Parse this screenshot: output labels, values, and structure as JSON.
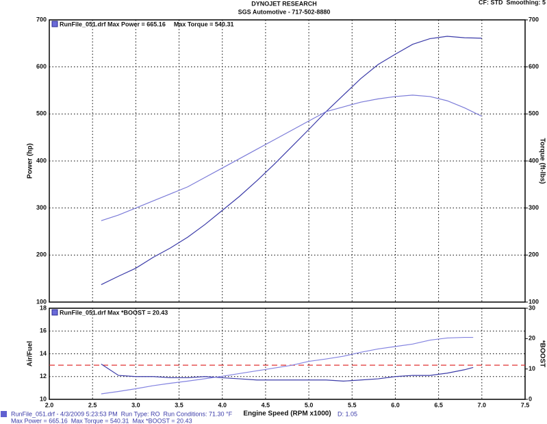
{
  "header": {
    "title": "DYNOJET RESEARCH",
    "subtitle": "SGS Automotive - 717-502-8880",
    "settings": "CF: STD  Smoothing: 5"
  },
  "footer": {
    "line1": "RunFile_051.drf - 4/3/2009 5:23:53 PM  Run Type: RO  Run Conditions: 71.30 °F",
    "line1_end": "D: 1.05",
    "line2": "Max Power = 665.16  Max Torque = 540.31  Max *BOOST = 20.43"
  },
  "chart_data": [
    {
      "type": "line",
      "ylabel": "Power (hp)",
      "y2label": "Torque (ft-lbs)",
      "x": [
        2.6,
        2.8,
        3.0,
        3.2,
        3.4,
        3.6,
        3.8,
        4.0,
        4.2,
        4.4,
        4.6,
        4.8,
        5.0,
        5.2,
        5.4,
        5.6,
        5.8,
        6.0,
        6.2,
        6.4,
        6.6,
        6.8,
        7.0
      ],
      "series": [
        {
          "name": "RunFile_051.drf Max Power = 665.16",
          "color": "#3a3aa8",
          "values": [
            137,
            155,
            172,
            195,
            215,
            238,
            265,
            295,
            325,
            358,
            393,
            430,
            467,
            505,
            540,
            575,
            605,
            627,
            648,
            660,
            665,
            662,
            661
          ]
        },
        {
          "name": "Max Torque = 540.31",
          "color": "#7b7bd8",
          "axis": "y2",
          "values": [
            273,
            285,
            300,
            315,
            330,
            345,
            365,
            385,
            405,
            425,
            445,
            465,
            485,
            505,
            515,
            525,
            532,
            537,
            540,
            537,
            528,
            513,
            495
          ]
        }
      ],
      "xlim": [
        2.0,
        7.5
      ],
      "xticks": [
        2.0,
        2.5,
        3.0,
        3.5,
        4.0,
        4.5,
        5.0,
        5.5,
        6.0,
        6.5,
        7.0,
        7.5
      ],
      "ylim": [
        100,
        700
      ],
      "yticks": [
        100,
        200,
        300,
        400,
        500,
        600,
        700
      ],
      "y2lim": [
        100,
        700
      ],
      "y2ticks": [
        100,
        200,
        300,
        400,
        500,
        600,
        700
      ],
      "grid": true
    },
    {
      "type": "line",
      "ylabel": "Air/Fuel",
      "y2label": "*BOOST",
      "xlabel": "Engine Speed (RPM x1000)",
      "x": [
        2.6,
        2.8,
        3.0,
        3.2,
        3.4,
        3.6,
        3.8,
        4.0,
        4.2,
        4.4,
        4.6,
        4.8,
        5.0,
        5.2,
        5.4,
        5.6,
        5.8,
        6.0,
        6.2,
        6.4,
        6.6,
        6.8,
        6.9
      ],
      "series": [
        {
          "color": "#3a3aa8",
          "values": [
            13.1,
            12.1,
            12.0,
            12.0,
            11.9,
            11.9,
            12.0,
            11.9,
            11.8,
            11.7,
            11.7,
            11.7,
            11.7,
            11.7,
            11.6,
            11.7,
            11.8,
            12.0,
            12.1,
            12.1,
            12.3,
            12.6,
            12.8
          ]
        },
        {
          "name": "RunFile_051.drf Max *BOOST = 20.43",
          "color": "#8282e0",
          "axis": "y2",
          "values": [
            1.8,
            2.6,
            3.5,
            4.5,
            5.3,
            6.0,
            6.8,
            7.6,
            8.5,
            9.4,
            10.3,
            11.2,
            12.5,
            13.3,
            14.2,
            15.5,
            16.6,
            17.4,
            18.2,
            19.5,
            20.2,
            20.4,
            20.4
          ]
        }
      ],
      "reference_line": {
        "value": 13,
        "color": "#e03030"
      },
      "xlim": [
        2.0,
        7.5
      ],
      "xticks": [
        {
          "value": 2.0,
          "label": "2.0"
        },
        {
          "value": 2.5,
          "label": "2.5"
        },
        {
          "value": 3.0,
          "label": "3.0"
        },
        {
          "value": 3.5,
          "label": "3.5"
        },
        {
          "value": 4.0,
          "label": "4.0"
        },
        {
          "value": 4.5,
          "label": "4.5"
        },
        {
          "value": 5.0,
          "label": "5.0"
        },
        {
          "value": 5.5,
          "label": "5.5"
        },
        {
          "value": 6.0,
          "label": "6.0"
        },
        {
          "value": 6.5,
          "label": "6.5"
        },
        {
          "value": 7.0,
          "label": "7.0"
        },
        {
          "value": 7.5,
          "label": "7.5"
        }
      ],
      "ylim": [
        10,
        18
      ],
      "yticks": [
        10,
        12,
        14,
        16,
        18
      ],
      "y2lim": [
        0,
        30
      ],
      "y2ticks": [
        0,
        10,
        20,
        30
      ],
      "grid": true
    }
  ]
}
